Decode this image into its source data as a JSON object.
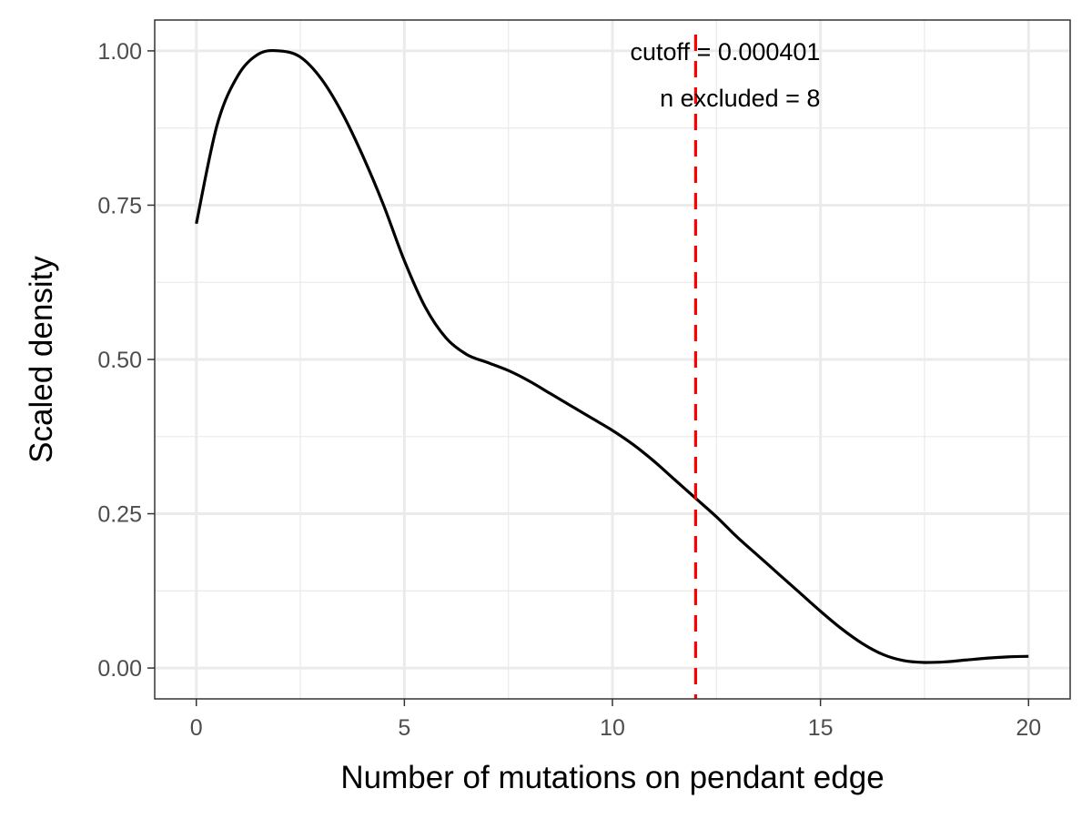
{
  "chart_data": {
    "type": "line",
    "title": "",
    "xlabel": "Number of mutations on pendant edge",
    "ylabel": "Scaled density",
    "xlim": [
      -1,
      21
    ],
    "ylim": [
      -0.05,
      1.05
    ],
    "x_ticks": [
      0,
      5,
      10,
      15,
      20
    ],
    "x_tick_labels": [
      "0",
      "5",
      "10",
      "15",
      "20"
    ],
    "y_ticks": [
      0,
      0.25,
      0.5,
      0.75,
      1
    ],
    "y_tick_labels": [
      "0.00",
      "0.25",
      "0.50",
      "0.75",
      "1.00"
    ],
    "grid": true,
    "legend": "none",
    "series": [
      {
        "color": "#000000",
        "x": [
          0,
          0.5,
          1,
          1.5,
          2,
          2.5,
          3,
          3.5,
          4,
          4.5,
          5,
          5.5,
          6,
          6.5,
          7,
          7.5,
          8,
          8.5,
          9,
          9.5,
          10,
          10.5,
          11,
          11.5,
          12,
          12.5,
          13,
          13.5,
          14,
          14.5,
          15,
          15.5,
          16,
          16.5,
          17,
          17.5,
          18,
          18.5,
          19,
          19.5,
          20
        ],
        "y": [
          0.72,
          0.88,
          0.96,
          0.995,
          1.0,
          0.99,
          0.955,
          0.9,
          0.83,
          0.75,
          0.66,
          0.585,
          0.535,
          0.508,
          0.495,
          0.482,
          0.465,
          0.445,
          0.425,
          0.405,
          0.385,
          0.362,
          0.335,
          0.305,
          0.275,
          0.245,
          0.212,
          0.182,
          0.152,
          0.122,
          0.092,
          0.064,
          0.04,
          0.022,
          0.012,
          0.009,
          0.01,
          0.013,
          0.016,
          0.018,
          0.019
        ]
      }
    ],
    "vline": {
      "x": 12,
      "color": "#ff0000",
      "style": "dashed"
    },
    "annotations": [
      {
        "text": "cutoff = 0.000401",
        "x": 12,
        "y": 0.985
      },
      {
        "text": "n excluded = 8",
        "x": 12,
        "y": 0.91
      }
    ]
  }
}
